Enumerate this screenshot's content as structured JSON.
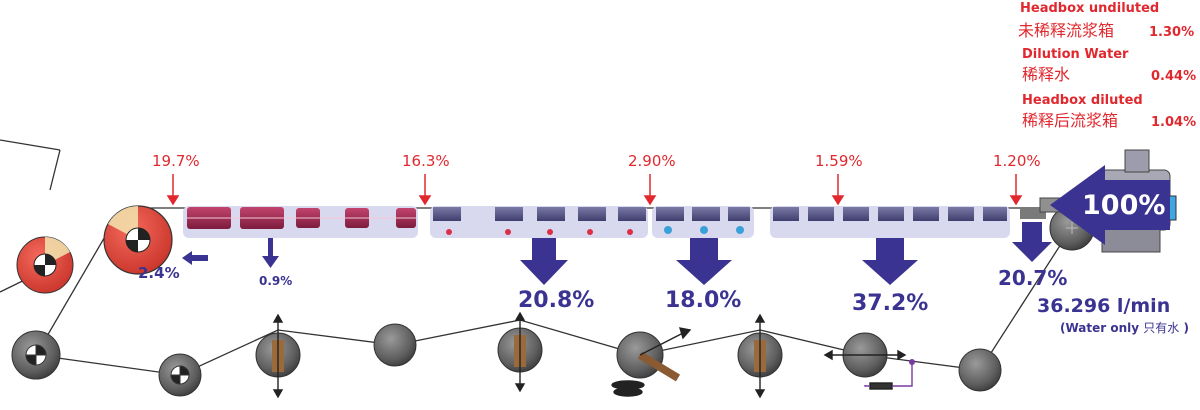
{
  "legend": {
    "headbox_undiluted": {
      "en": "Headbox undiluted",
      "zh": "未稀释流浆箱",
      "value": "1.30%"
    },
    "dilution_water": {
      "en": "Dilution Water",
      "zh": "稀释水",
      "value": "0.44%"
    },
    "headbox_diluted": {
      "en": "Headbox diluted",
      "zh": "稀释后流浆箱",
      "value": "1.04%"
    }
  },
  "consistency_labels": [
    "19.7%",
    "16.3%",
    "2.90%",
    "1.59%",
    "1.20%"
  ],
  "drainage": {
    "couch": "2.4%",
    "suction_box": "0.9%",
    "vacuum_section_1": "20.8%",
    "vacuum_section_2": "18.0%",
    "vacuum_section_3": "37.2%",
    "forming_board": "20.7%",
    "headbox_inflow": "100%"
  },
  "flow": {
    "rate": "36.296 l/min",
    "note_en": "(Water only",
    "note_zh": "只有水",
    "note_close": ")"
  },
  "colors": {
    "red_label": "#e0282e",
    "arrow_blue": "#3b3391",
    "roll_red": "#e8473a",
    "roll_grey": "#6d6d6d",
    "box_purple": "#a22a52",
    "panel": "#d8d8ee"
  }
}
